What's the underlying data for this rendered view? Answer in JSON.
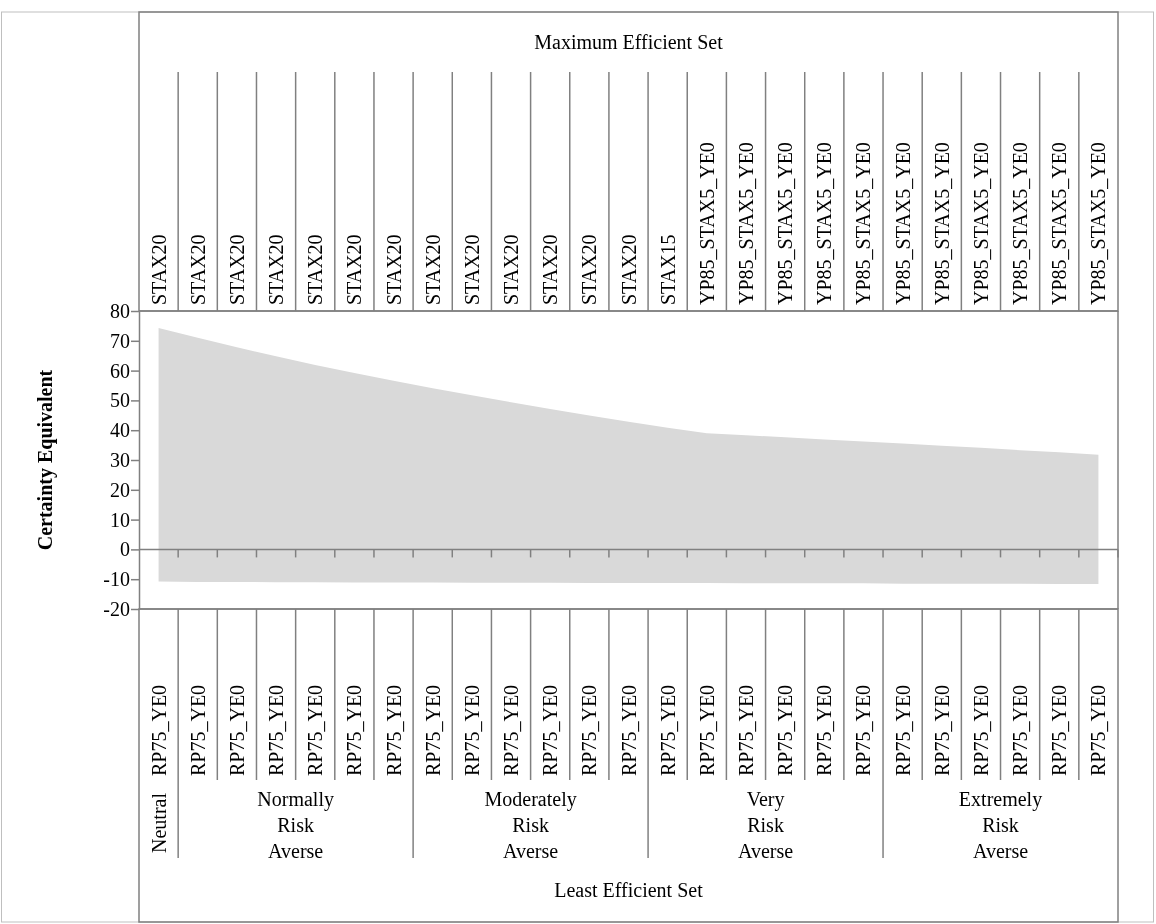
{
  "chart_data": {
    "type": "area",
    "categories": [
      "RP75_YE0",
      "RP75_YE0",
      "RP75_YE0",
      "RP75_YE0",
      "RP75_YE0",
      "RP75_YE0",
      "RP75_YE0",
      "RP75_YE0",
      "RP75_YE0",
      "RP75_YE0",
      "RP75_YE0",
      "RP75_YE0",
      "RP75_YE0",
      "RP75_YE0",
      "RP75_YE0",
      "RP75_YE0",
      "RP75_YE0",
      "RP75_YE0",
      "RP75_YE0",
      "RP75_YE0",
      "RP75_YE0",
      "RP75_YE0",
      "RP75_YE0",
      "RP75_YE0",
      "RP75_YE0"
    ],
    "series": [
      {
        "color": "#d9d9d9",
        "values": [
          74.3,
          71.0,
          67.8,
          64.8,
          61.9,
          59.2,
          56.6,
          54.1,
          51.7,
          49.4,
          47.1,
          44.9,
          42.8,
          40.8,
          39.0,
          38.3,
          37.6,
          36.9,
          36.2,
          35.5,
          34.8,
          34.1,
          33.3,
          32.6,
          31.8
        ]
      },
      {
        "color": "#d9d9d9",
        "values": [
          -10.8,
          -10.9,
          -10.9,
          -11.0,
          -11.0,
          -11.1,
          -11.1,
          -11.1,
          -11.2,
          -11.2,
          -11.2,
          -11.3,
          -11.3,
          -11.3,
          -11.3,
          -11.4,
          -11.4,
          -11.4,
          -11.4,
          -11.5,
          -11.5,
          -11.5,
          -11.5,
          -11.6,
          -11.6
        ]
      }
    ],
    "ylim": [
      -20,
      80
    ],
    "yticks": [
      -20,
      -10,
      0,
      10,
      20,
      30,
      40,
      50,
      60,
      70,
      80
    ],
    "ylabel": "Certainty Equivalent",
    "x2label": "Maximum Efficient Set",
    "annotations": [
      "STAX20",
      "STAX20",
      "STAX20",
      "STAX20",
      "STAX20",
      "STAX20",
      "STAX20",
      "STAX20",
      "STAX20",
      "STAX20",
      "STAX20",
      "STAX20",
      "STAX20",
      "STAX15",
      "YP85_STAX5_YE0",
      "YP85_STAX5_YE0",
      "YP85_STAX5_YE0",
      "YP85_STAX5_YE0",
      "YP85_STAX5_YE0",
      "YP85_STAX5_YE0",
      "YP85_STAX5_YE0",
      "YP85_STAX5_YE0",
      "YP85_STAX5_YE0",
      "YP85_STAX5_YE0",
      "YP85_STAX5_YE0",
      "Neutral",
      "Normally Risk Averse",
      "Moderately Risk Averse",
      "Very Risk Averse",
      "Extremely Risk Averse",
      "Least Efficient Set"
    ]
  }
}
